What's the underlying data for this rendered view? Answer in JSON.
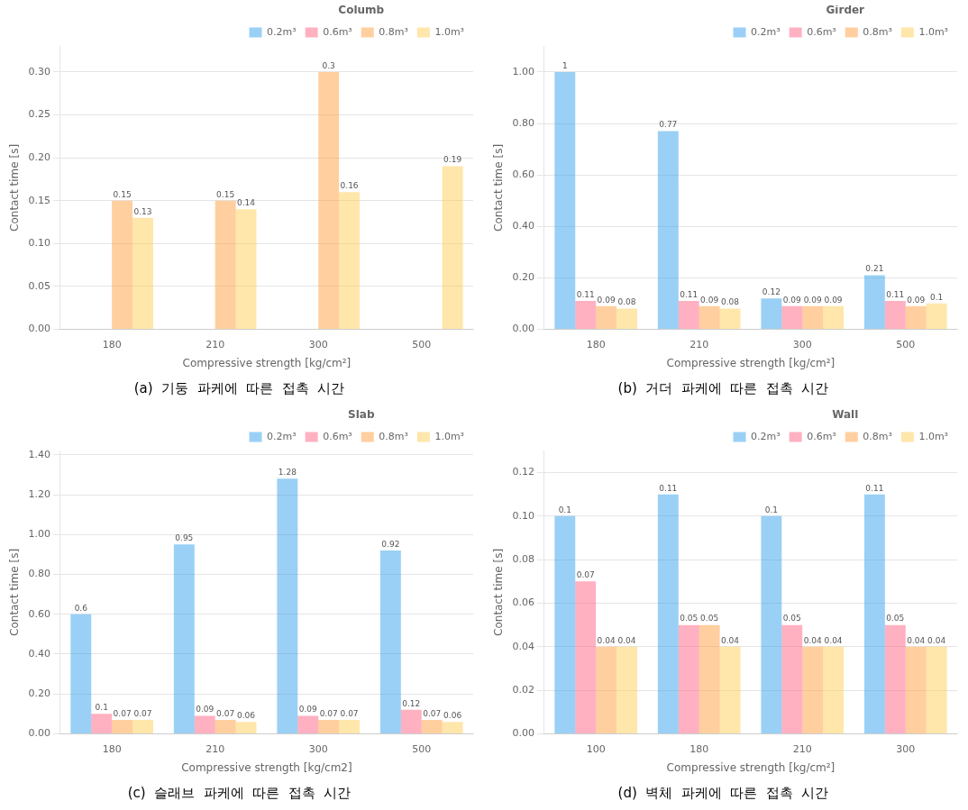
{
  "chart_data": [
    {
      "type": "bar",
      "title": "Columb",
      "caption": "(a)  기둥  파케에  따른  접촉  시간",
      "categories": [
        "180",
        "210",
        "300",
        "500"
      ],
      "xlabel": "Compressive strength [kg/cm²]",
      "ylabel": "Contact time [s]",
      "ylim": [
        0,
        0.33
      ],
      "yticks": [
        {
          "value": 0.0,
          "label": "0.00"
        },
        0.05,
        {
          "value": 0.1,
          "label": "0.10"
        },
        0.15,
        {
          "value": 0.2,
          "label": "0.20"
        },
        0.25,
        {
          "value": 0.3,
          "label": "0.30"
        }
      ],
      "series": [
        {
          "name": "0.2m³",
          "values": [
            0,
            0,
            0,
            0
          ]
        },
        {
          "name": "0.6m³",
          "values": [
            0,
            0,
            0,
            0
          ]
        },
        {
          "name": "0.8m³",
          "values": [
            0.15,
            0.15,
            0.3,
            0
          ]
        },
        {
          "name": "1.0m³",
          "values": [
            0.13,
            0.14,
            0.16,
            0.19
          ]
        }
      ],
      "grid": true,
      "legend": "upper right",
      "data_labels": true
    },
    {
      "type": "bar",
      "title": "Girder",
      "caption": "(b)  거더  파케에  따른  접촉  시간",
      "categories": [
        "180",
        "210",
        "300",
        "500"
      ],
      "xlabel": "Compressive strength [kg/cm²]",
      "ylabel": "Contact time [s]",
      "ylim": [
        0,
        1.1
      ],
      "yticks": [
        {
          "value": 0.0,
          "label": "0.00"
        },
        {
          "value": 0.2,
          "label": "0.20"
        },
        {
          "value": 0.4,
          "label": "0.40"
        },
        {
          "value": 0.6,
          "label": "0.60"
        },
        {
          "value": 0.8,
          "label": "0.80"
        },
        {
          "value": 1.0,
          "label": "1.00"
        }
      ],
      "series": [
        {
          "name": "0.2m³",
          "values": [
            1.0,
            0.77,
            0.12,
            0.21
          ]
        },
        {
          "name": "0.6m³",
          "values": [
            0.11,
            0.11,
            0.09,
            0.11
          ]
        },
        {
          "name": "0.8m³",
          "values": [
            0.09,
            0.09,
            0.09,
            0.09
          ]
        },
        {
          "name": "1.0m³",
          "values": [
            0.08,
            0.08,
            0.09,
            0.1
          ]
        }
      ],
      "grid": true,
      "legend": "upper right",
      "data_labels": true
    },
    {
      "type": "bar",
      "title": "Slab",
      "caption": "(c)  슬래브  파케에  따른  접촉  시간",
      "categories": [
        "180",
        "210",
        "300",
        "500"
      ],
      "xlabel": "Compressive strength [kg/cm2]",
      "ylabel": "Contact time [s]",
      "ylim": [
        0,
        1.42
      ],
      "yticks": [
        {
          "value": 0.0,
          "label": "0.00"
        },
        {
          "value": 0.2,
          "label": "0.20"
        },
        {
          "value": 0.4,
          "label": "0.40"
        },
        {
          "value": 0.6,
          "label": "0.60"
        },
        {
          "value": 0.8,
          "label": "0.80"
        },
        {
          "value": 1.0,
          "label": "1.00"
        },
        {
          "value": 1.2,
          "label": "1.20"
        },
        {
          "value": 1.4,
          "label": "1.40"
        }
      ],
      "series": [
        {
          "name": "0.2m³",
          "values": [
            0.6,
            0.95,
            1.28,
            0.92
          ]
        },
        {
          "name": "0.6m³",
          "values": [
            0.1,
            0.09,
            0.09,
            0.12
          ]
        },
        {
          "name": "0.8m³",
          "values": [
            0.07,
            0.07,
            0.07,
            0.07
          ]
        },
        {
          "name": "1.0m³",
          "values": [
            0.07,
            0.06,
            0.07,
            0.06
          ]
        }
      ],
      "grid": true,
      "legend": "upper right",
      "data_labels": true
    },
    {
      "type": "bar",
      "title": "Wall",
      "caption": "(d)  벽체  파케에  따른  접촉  시간",
      "categories": [
        "100",
        "180",
        "210",
        "300"
      ],
      "xlabel": "Compressive strength [kg/cm²]",
      "ylabel": "Contact time [s]",
      "ylim": [
        0,
        0.13
      ],
      "yticks": [
        {
          "value": 0.0,
          "label": "0.00"
        },
        0.02,
        0.04,
        0.06,
        0.08,
        {
          "value": 0.1,
          "label": "0.10"
        },
        0.12
      ],
      "series": [
        {
          "name": "0.2m³",
          "values": [
            0.1,
            0.11,
            0.1,
            0.11
          ]
        },
        {
          "name": "0.6m³",
          "values": [
            0.07,
            0.05,
            0.05,
            0.05
          ]
        },
        {
          "name": "0.8m³",
          "values": [
            0.04,
            0.05,
            0.04,
            0.04
          ]
        },
        {
          "name": "1.0m³",
          "values": [
            0.04,
            0.04,
            0.04,
            0.04
          ]
        }
      ],
      "grid": true,
      "legend": "upper right",
      "data_labels": true
    }
  ]
}
